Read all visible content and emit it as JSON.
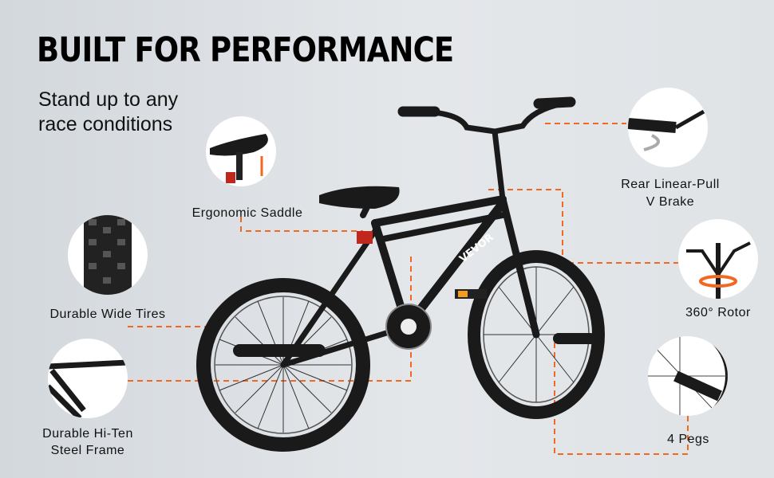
{
  "title": "BUILT FOR PERFORMANCE",
  "subtitle": [
    "Stand up to any",
    "race conditions"
  ],
  "features": {
    "saddle": "Ergonomic Saddle",
    "tires": "Durable Wide Tires",
    "frame": [
      "Durable Hi-Ten",
      "Steel Frame"
    ],
    "brake": [
      "Rear Linear-Pull",
      "V Brake"
    ],
    "rotor": "360° Rotor",
    "pegs": "4 Pegs"
  },
  "brand": "VEVOR",
  "colors": {
    "accent": "#f26722",
    "bike": "#1a1a1a"
  }
}
